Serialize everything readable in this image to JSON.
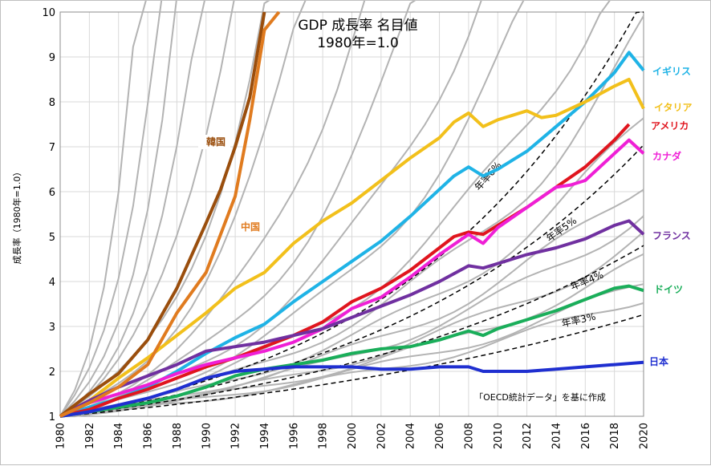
{
  "chart_data": {
    "type": "line",
    "title_line1": "GDP 成長率 名目値",
    "title_line2": "1980年=1.0",
    "ylabel": "成長率（1980年=1.0）",
    "note": "「OECD統計データ」を基に作成",
    "x_ticks": [
      "1980",
      "1982",
      "1984",
      "1986",
      "1988",
      "1990",
      "1992",
      "1994",
      "1996",
      "1998",
      "2000",
      "2002",
      "2004",
      "2006",
      "2008",
      "2010",
      "2012",
      "2014",
      "2016",
      "2018",
      "2020"
    ],
    "y_ticks": [
      "1",
      "2",
      "3",
      "4",
      "5",
      "6",
      "7",
      "8",
      "9",
      "10"
    ],
    "xlim": [
      1980,
      2020
    ],
    "ylim": [
      1,
      10
    ],
    "grid": true,
    "series": [
      {
        "name": "イギリス",
        "color": "#1fb3e6",
        "years": [
          1980,
          1982,
          1984,
          1986,
          1988,
          1990,
          1992,
          1994,
          1996,
          1998,
          2000,
          2002,
          2004,
          2006,
          2007,
          2008,
          2009,
          2010,
          2012,
          2014,
          2016,
          2018,
          2019,
          2020
        ],
        "values": [
          1.0,
          1.2,
          1.4,
          1.65,
          2.0,
          2.4,
          2.75,
          3.05,
          3.55,
          4.0,
          4.45,
          4.9,
          5.45,
          6.05,
          6.35,
          6.55,
          6.35,
          6.5,
          6.9,
          7.45,
          8.0,
          8.65,
          9.1,
          8.7
        ]
      },
      {
        "name": "イタリア",
        "color": "#f2c01b",
        "years": [
          1980,
          1982,
          1984,
          1986,
          1988,
          1990,
          1992,
          1994,
          1996,
          1998,
          2000,
          2002,
          2004,
          2006,
          2007,
          2008,
          2009,
          2010,
          2012,
          2013,
          2014,
          2016,
          2018,
          2019,
          2020
        ],
        "values": [
          1.0,
          1.35,
          1.85,
          2.3,
          2.8,
          3.3,
          3.85,
          4.2,
          4.85,
          5.35,
          5.75,
          6.25,
          6.75,
          7.2,
          7.55,
          7.75,
          7.45,
          7.6,
          7.8,
          7.65,
          7.7,
          8.0,
          8.35,
          8.5,
          7.85
        ]
      },
      {
        "name": "アメリカ",
        "color": "#e0151e",
        "years": [
          1980,
          1982,
          1984,
          1986,
          1988,
          1990,
          1992,
          1994,
          1996,
          1998,
          2000,
          2002,
          2004,
          2006,
          2007,
          2008,
          2009,
          2010,
          2012,
          2014,
          2016,
          2018,
          2019
        ],
        "values": [
          1.0,
          1.15,
          1.4,
          1.6,
          1.85,
          2.1,
          2.3,
          2.55,
          2.8,
          3.1,
          3.55,
          3.85,
          4.25,
          4.75,
          5.0,
          5.1,
          5.05,
          5.25,
          5.65,
          6.1,
          6.55,
          7.15,
          7.5
        ]
      },
      {
        "name": "カナダ",
        "color": "#ef1fd6",
        "years": [
          1980,
          1982,
          1984,
          1986,
          1988,
          1990,
          1992,
          1994,
          1996,
          1998,
          2000,
          2002,
          2004,
          2006,
          2008,
          2009,
          2010,
          2012,
          2014,
          2015,
          2016,
          2018,
          2019,
          2020
        ],
        "values": [
          1.0,
          1.3,
          1.5,
          1.7,
          1.95,
          2.15,
          2.3,
          2.45,
          2.65,
          2.95,
          3.4,
          3.65,
          4.1,
          4.6,
          5.05,
          4.85,
          5.2,
          5.65,
          6.1,
          6.15,
          6.25,
          6.85,
          7.15,
          6.85
        ]
      },
      {
        "name": "フランス",
        "color": "#7030a0",
        "years": [
          1980,
          1982,
          1984,
          1986,
          1988,
          1990,
          1992,
          1994,
          1996,
          1998,
          2000,
          2002,
          2004,
          2006,
          2008,
          2009,
          2010,
          2012,
          2014,
          2016,
          2018,
          2019,
          2020
        ],
        "values": [
          1.0,
          1.35,
          1.65,
          1.9,
          2.15,
          2.45,
          2.55,
          2.65,
          2.8,
          2.95,
          3.2,
          3.45,
          3.7,
          4.0,
          4.35,
          4.3,
          4.4,
          4.6,
          4.75,
          4.95,
          5.25,
          5.35,
          5.05
        ]
      },
      {
        "name": "ドイツ",
        "color": "#1aae5a",
        "years": [
          1980,
          1982,
          1984,
          1986,
          1988,
          1990,
          1992,
          1994,
          1996,
          1998,
          2000,
          2002,
          2004,
          2006,
          2008,
          2009,
          2010,
          2012,
          2014,
          2016,
          2018,
          2019,
          2020
        ],
        "values": [
          1.0,
          1.1,
          1.2,
          1.3,
          1.45,
          1.65,
          1.9,
          2.05,
          2.15,
          2.25,
          2.4,
          2.5,
          2.55,
          2.7,
          2.9,
          2.8,
          2.95,
          3.15,
          3.35,
          3.6,
          3.85,
          3.9,
          3.8
        ]
      },
      {
        "name": "日本",
        "color": "#1f2fd0",
        "years": [
          1980,
          1982,
          1984,
          1986,
          1988,
          1990,
          1992,
          1994,
          1996,
          1998,
          2000,
          2002,
          2004,
          2006,
          2008,
          2009,
          2010,
          2012,
          2014,
          2016,
          2018,
          2020
        ],
        "values": [
          1.0,
          1.1,
          1.25,
          1.4,
          1.6,
          1.85,
          2.0,
          2.05,
          2.1,
          2.1,
          2.1,
          2.05,
          2.05,
          2.1,
          2.1,
          2.0,
          2.0,
          2.0,
          2.05,
          2.1,
          2.15,
          2.2
        ]
      },
      {
        "name": "韓国",
        "color": "#9a4e0d",
        "years": [
          1980,
          1982,
          1984,
          1986,
          1988,
          1990,
          1991,
          1992,
          1993,
          1994
        ],
        "values": [
          1.0,
          1.5,
          1.95,
          2.7,
          3.85,
          5.3,
          6.05,
          7.0,
          8.1,
          10.0
        ]
      },
      {
        "name": "中国",
        "color": "#e07b1f",
        "years": [
          1980,
          1982,
          1984,
          1986,
          1988,
          1990,
          1992,
          1993,
          1994,
          1995
        ],
        "values": [
          1.0,
          1.3,
          1.65,
          2.15,
          3.3,
          4.2,
          5.9,
          7.6,
          9.6,
          10.0
        ]
      }
    ],
    "trendlines": [
      {
        "name": "年率6%",
        "rate": 0.06
      },
      {
        "name": "年率5%",
        "rate": 0.05
      },
      {
        "name": "年率4%",
        "rate": 0.04
      },
      {
        "name": "年率3%",
        "rate": 0.03
      }
    ]
  }
}
